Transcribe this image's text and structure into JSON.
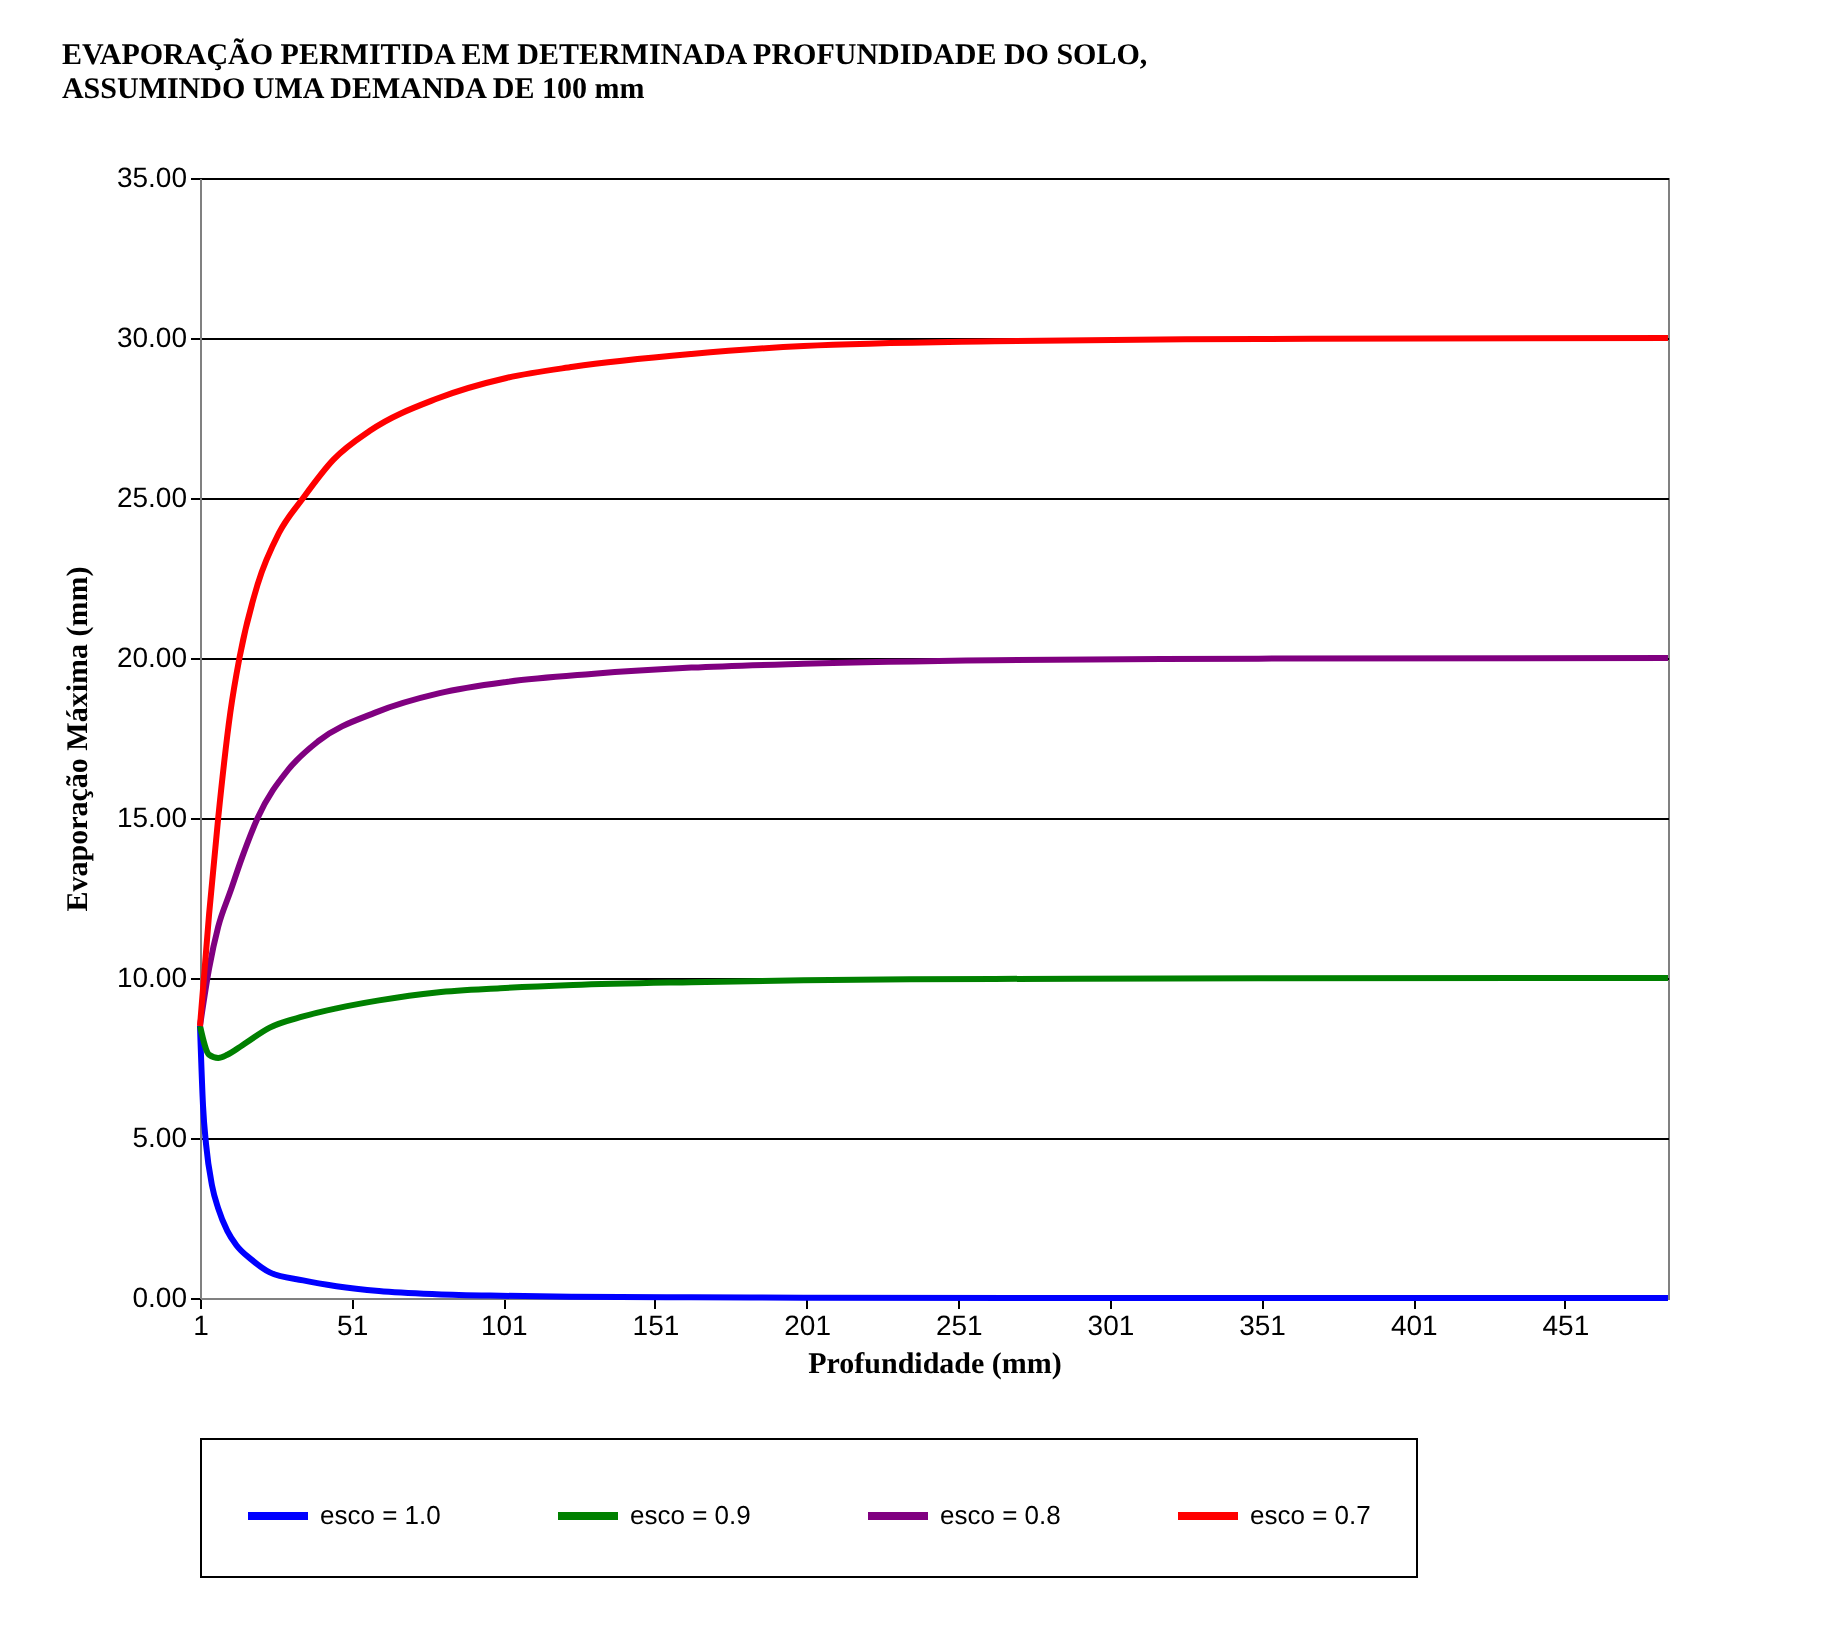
{
  "chart_data": {
    "type": "line",
    "title": "EVAPORAÇÃO PERMITIDA EM DETERMINADA PROFUNDIDADE DO SOLO, ASSUMINDO UMA DEMANDA DE 100 mm",
    "xlabel": "Profundidade (mm)",
    "ylabel": "Evaporação Máxima (mm)",
    "xlim": [
      1,
      485
    ],
    "xticks": [
      1,
      51,
      101,
      151,
      201,
      251,
      301,
      351,
      401,
      451
    ],
    "ylim": [
      0,
      35
    ],
    "yticks": [
      {
        "value": 0,
        "label": "0.00"
      },
      {
        "value": 5,
        "label": "5.00"
      },
      {
        "value": 10,
        "label": "10.00"
      },
      {
        "value": 15,
        "label": "15.00"
      },
      {
        "value": 20,
        "label": "20.00"
      },
      {
        "value": 25,
        "label": "25.00"
      },
      {
        "value": 30,
        "label": "30.00"
      },
      {
        "value": 35,
        "label": "35.00"
      }
    ],
    "grid": "y",
    "legend": "bottom",
    "marker": "none",
    "line_style": "solid",
    "series": [
      {
        "name": "esco = 1.0",
        "color": "#0000ff",
        "x": [
          1,
          2,
          3,
          5,
          7,
          10,
          13,
          18,
          24,
          35,
          46,
          60,
          79,
          100,
          124,
          163,
          200,
          300,
          485
        ],
        "values": [
          8.5,
          6.0,
          4.8,
          3.5,
          2.8,
          2.1,
          1.65,
          1.2,
          0.8,
          0.55,
          0.37,
          0.22,
          0.12,
          0.07,
          0.04,
          0.02,
          0.01,
          0,
          0
        ]
      },
      {
        "name": "esco = 0.9",
        "color": "#008000",
        "x": [
          1,
          4,
          7,
          10,
          15,
          24,
          35,
          46,
          60,
          79,
          100,
          124,
          163,
          200,
          263,
          350,
          485
        ],
        "values": [
          8.5,
          7.6,
          7.5,
          7.6,
          7.9,
          8.45,
          8.8,
          9.05,
          9.3,
          9.55,
          9.68,
          9.78,
          9.87,
          9.93,
          9.97,
          9.99,
          10
        ]
      },
      {
        "name": "esco = 0.8",
        "color": "#800080",
        "x": [
          1,
          4,
          7,
          11,
          15,
          20,
          30,
          40,
          59,
          80,
          102,
          130,
          163,
          200,
          263,
          350,
          485
        ],
        "values": [
          8.5,
          10.3,
          11.6,
          12.7,
          13.8,
          15.0,
          16.5,
          17.4,
          18.3,
          18.9,
          19.25,
          19.5,
          19.7,
          19.82,
          19.93,
          19.98,
          20
        ]
      },
      {
        "name": "esco = 0.7",
        "color": "#ff0000",
        "x": [
          1,
          4,
          7,
          11,
          14,
          20,
          27,
          35,
          45,
          57,
          79,
          102,
          124,
          163,
          200,
          263,
          350,
          485
        ],
        "values": [
          8.5,
          12,
          15,
          18.3,
          20,
          22.3,
          23.9,
          25,
          26.2,
          27.1,
          28.1,
          28.75,
          29.1,
          29.5,
          29.75,
          29.9,
          29.97,
          30
        ]
      }
    ]
  }
}
